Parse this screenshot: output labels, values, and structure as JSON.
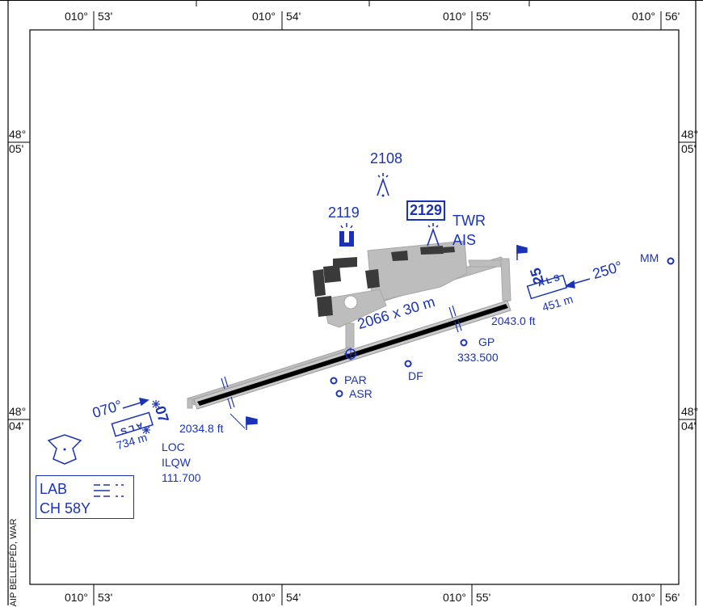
{
  "map": {
    "longitudes": [
      "010°",
      "53'",
      "010°",
      "54'",
      "010°",
      "55'",
      "010°",
      "56'"
    ],
    "lat_north": {
      "deg": "48°",
      "min": "05'"
    },
    "lat_south": {
      "deg": "48°",
      "min": "04'"
    },
    "side_note": "AIP BELLEPÉD, WAR"
  },
  "runway": {
    "dimensions": "2066 x 30 m",
    "rwy_west": "07",
    "rwy_east": "25",
    "elev_west": "2034.8 ft",
    "elev_east": "2043.0 ft",
    "hdg_west": "070°",
    "hdg_east": "250°",
    "als_west": "734 m",
    "als_east": "451 m",
    "als_label": "ALS"
  },
  "obstacles": {
    "a": "2108",
    "b": "2119",
    "c": "2129"
  },
  "facilities": {
    "twr": "TWR",
    "ais": "AIS",
    "mm": "MM",
    "gp": "GP",
    "gp_freq": "333.500",
    "df": "DF",
    "par": "PAR",
    "asr": "ASR",
    "loc": "LOC",
    "loc_ident": "ILQW",
    "loc_freq": "111.700"
  },
  "legend": {
    "lab": "LAB",
    "ch": "CH 58Y"
  },
  "colors": {
    "blue": "#1a33b5",
    "grey": "#b5b5b5",
    "dark": "#333333"
  }
}
